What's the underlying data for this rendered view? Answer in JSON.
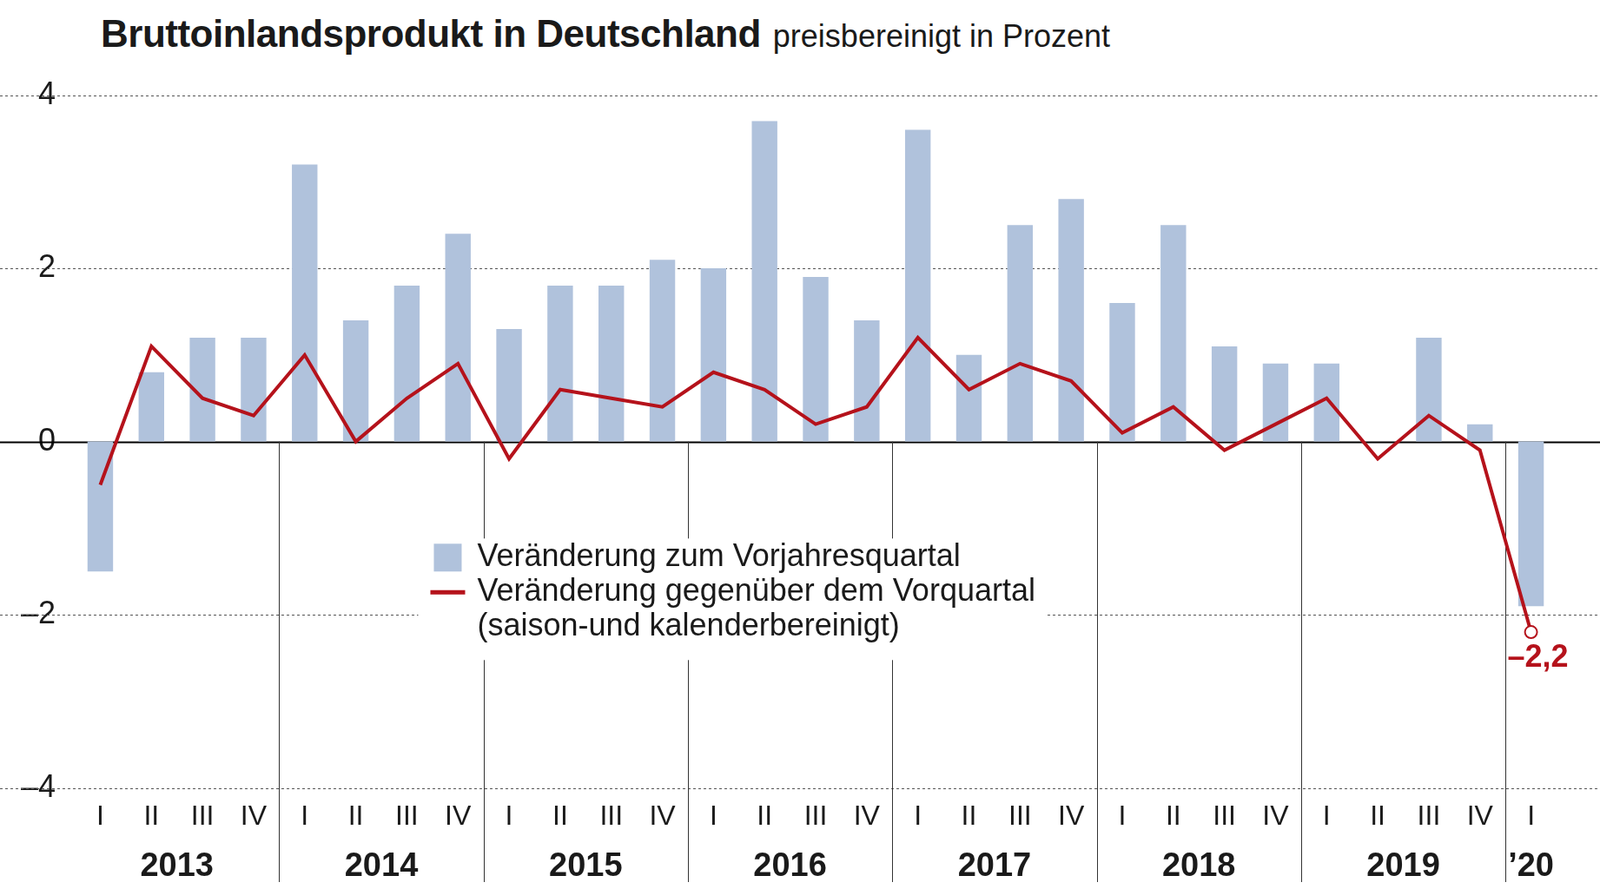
{
  "chart_data": {
    "type": "bar",
    "title": "Bruttoinlandsprodukt in Deutschland",
    "subtitle": "preisbereinigt in Prozent",
    "categories": [
      "I",
      "II",
      "III",
      "IV",
      "I",
      "II",
      "III",
      "IV",
      "I",
      "II",
      "III",
      "IV",
      "I",
      "II",
      "III",
      "IV",
      "I",
      "II",
      "III",
      "IV",
      "I",
      "II",
      "III",
      "IV",
      "I",
      "II",
      "III",
      "IV",
      "I"
    ],
    "group_labels": [
      "2013",
      "2014",
      "2015",
      "2016",
      "2017",
      "2018",
      "2019",
      "’20"
    ],
    "series": [
      {
        "name": "Veränderung zum Vorjahresquartal",
        "type": "bar",
        "color": "#b0c2dc",
        "values": [
          -1.5,
          0.8,
          1.2,
          1.2,
          3.2,
          1.4,
          1.8,
          2.4,
          1.3,
          1.8,
          1.8,
          2.1,
          2.0,
          3.7,
          1.9,
          1.4,
          3.6,
          1.0,
          2.5,
          2.8,
          1.6,
          2.5,
          1.1,
          0.9,
          0.9,
          0.0,
          1.2,
          0.2,
          -1.9
        ]
      },
      {
        "name": "Veränderung gegenüber dem Vorquartal\n(saison-und kalenderbereinigt)",
        "type": "line",
        "color": "#b5121b",
        "values": [
          -0.5,
          1.1,
          0.5,
          0.3,
          1.0,
          0.0,
          0.5,
          0.9,
          -0.2,
          0.6,
          0.5,
          0.4,
          0.8,
          0.6,
          0.2,
          0.4,
          1.2,
          0.6,
          0.9,
          0.7,
          0.1,
          0.4,
          -0.1,
          0.2,
          0.5,
          -0.2,
          0.3,
          -0.1,
          -2.2
        ],
        "value_labels": [
          null,
          null,
          null,
          null,
          null,
          null,
          null,
          null,
          null,
          null,
          null,
          null,
          null,
          null,
          null,
          null,
          null,
          null,
          null,
          null,
          null,
          null,
          null,
          null,
          null,
          null,
          null,
          null,
          "–2,2"
        ]
      }
    ],
    "ylim": [
      -4,
      4
    ],
    "yticks": [
      {
        "value": -4,
        "label": "–4"
      },
      {
        "value": -2,
        "label": "–2"
      },
      0,
      2,
      4
    ],
    "grid": true
  }
}
